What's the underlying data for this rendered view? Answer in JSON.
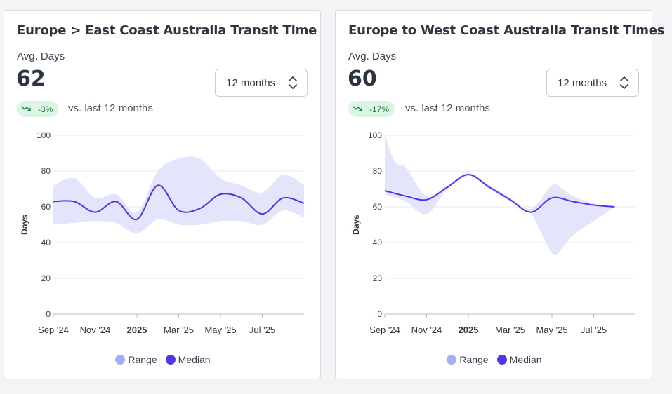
{
  "colors": {
    "range_fill": "#e4e4fb",
    "range_legend": "#a5aef5",
    "median_line": "#4f35e6",
    "grid": "#e6e8ec",
    "axis": "#b8bcc4",
    "badge_bg": "#dcf5e4",
    "badge_text": "#16803c"
  },
  "cards": [
    {
      "title": "Europe > East Coast Australia Transit Time",
      "metric_label": "Avg. Days",
      "metric_value": "62",
      "period_select": "12 months",
      "change_badge": "-3%",
      "change_icon": "trend-down-icon",
      "comparison": "vs. last 12 months",
      "legend": [
        "Range",
        "Median"
      ]
    },
    {
      "title": "Europe to West Coast Australia Transit Times",
      "metric_label": "Avg. Days",
      "metric_value": "60",
      "period_select": "12 months",
      "change_badge": "-17%",
      "change_icon": "trend-down-icon",
      "comparison": "vs. last 12 months",
      "legend": [
        "Range",
        "Median"
      ]
    }
  ],
  "chart_data": [
    {
      "type": "area",
      "ylabel": "Days",
      "ylim": [
        0,
        100
      ],
      "yticks": [
        0,
        20,
        40,
        60,
        80,
        100
      ],
      "grid": true,
      "legend_position": "bottom-center",
      "xlim": [
        0,
        12
      ],
      "xticks": [
        {
          "x": 0,
          "label": "Sep '24",
          "bold": false
        },
        {
          "x": 2,
          "label": "Nov '24",
          "bold": false
        },
        {
          "x": 4,
          "label": "2025",
          "bold": true
        },
        {
          "x": 6,
          "label": "Mar '25",
          "bold": false
        },
        {
          "x": 8,
          "label": "May '25",
          "bold": false
        },
        {
          "x": 10,
          "label": "Jul '25",
          "bold": false
        }
      ],
      "series": [
        {
          "name": "Median",
          "x": [
            0,
            1,
            2,
            3,
            4,
            5,
            6,
            7,
            8,
            9,
            10,
            11,
            12
          ],
          "values": [
            63,
            63,
            57,
            63,
            53,
            72,
            58,
            59,
            67,
            65,
            56,
            65,
            62
          ]
        },
        {
          "name": "Range",
          "x": [
            0,
            1,
            2,
            3,
            4,
            5,
            6,
            7,
            8,
            9,
            10,
            11,
            12
          ],
          "upper": [
            72,
            76,
            65,
            67,
            57,
            80,
            87,
            87,
            76,
            72,
            68,
            78,
            72
          ],
          "lower": [
            50,
            51,
            52,
            51,
            45,
            53,
            50,
            50,
            52,
            52,
            50,
            58,
            54
          ]
        }
      ]
    },
    {
      "type": "area",
      "ylabel": "Days",
      "ylim": [
        0,
        100
      ],
      "yticks": [
        0,
        20,
        40,
        60,
        80,
        100
      ],
      "grid": true,
      "legend_position": "bottom-center",
      "xlim": [
        0,
        12
      ],
      "xticks": [
        {
          "x": 0,
          "label": "Sep '24",
          "bold": false
        },
        {
          "x": 2,
          "label": "Nov '24",
          "bold": false
        },
        {
          "x": 4,
          "label": "2025",
          "bold": true
        },
        {
          "x": 6,
          "label": "Mar '25",
          "bold": false
        },
        {
          "x": 8,
          "label": "May '25",
          "bold": false
        },
        {
          "x": 10,
          "label": "Jul '25",
          "bold": false
        }
      ],
      "series": [
        {
          "name": "Median",
          "x": [
            0,
            1,
            2,
            3,
            4,
            5,
            6,
            7,
            8,
            9,
            10,
            11
          ],
          "values": [
            69,
            66,
            64,
            71,
            78,
            71,
            64,
            57,
            65,
            63,
            61,
            60
          ]
        },
        {
          "name": "Range",
          "x": [
            0,
            0.5,
            1,
            2,
            3,
            4,
            5,
            6,
            7,
            8,
            8.5,
            9,
            10,
            11
          ],
          "upper": [
            100,
            85,
            82,
            66,
            72,
            79,
            72,
            65,
            59,
            72,
            70,
            66,
            62,
            60
          ],
          "lower": [
            67,
            65,
            63,
            56,
            70,
            78,
            70,
            63,
            56,
            34,
            37,
            44,
            52,
            60
          ]
        }
      ]
    }
  ]
}
